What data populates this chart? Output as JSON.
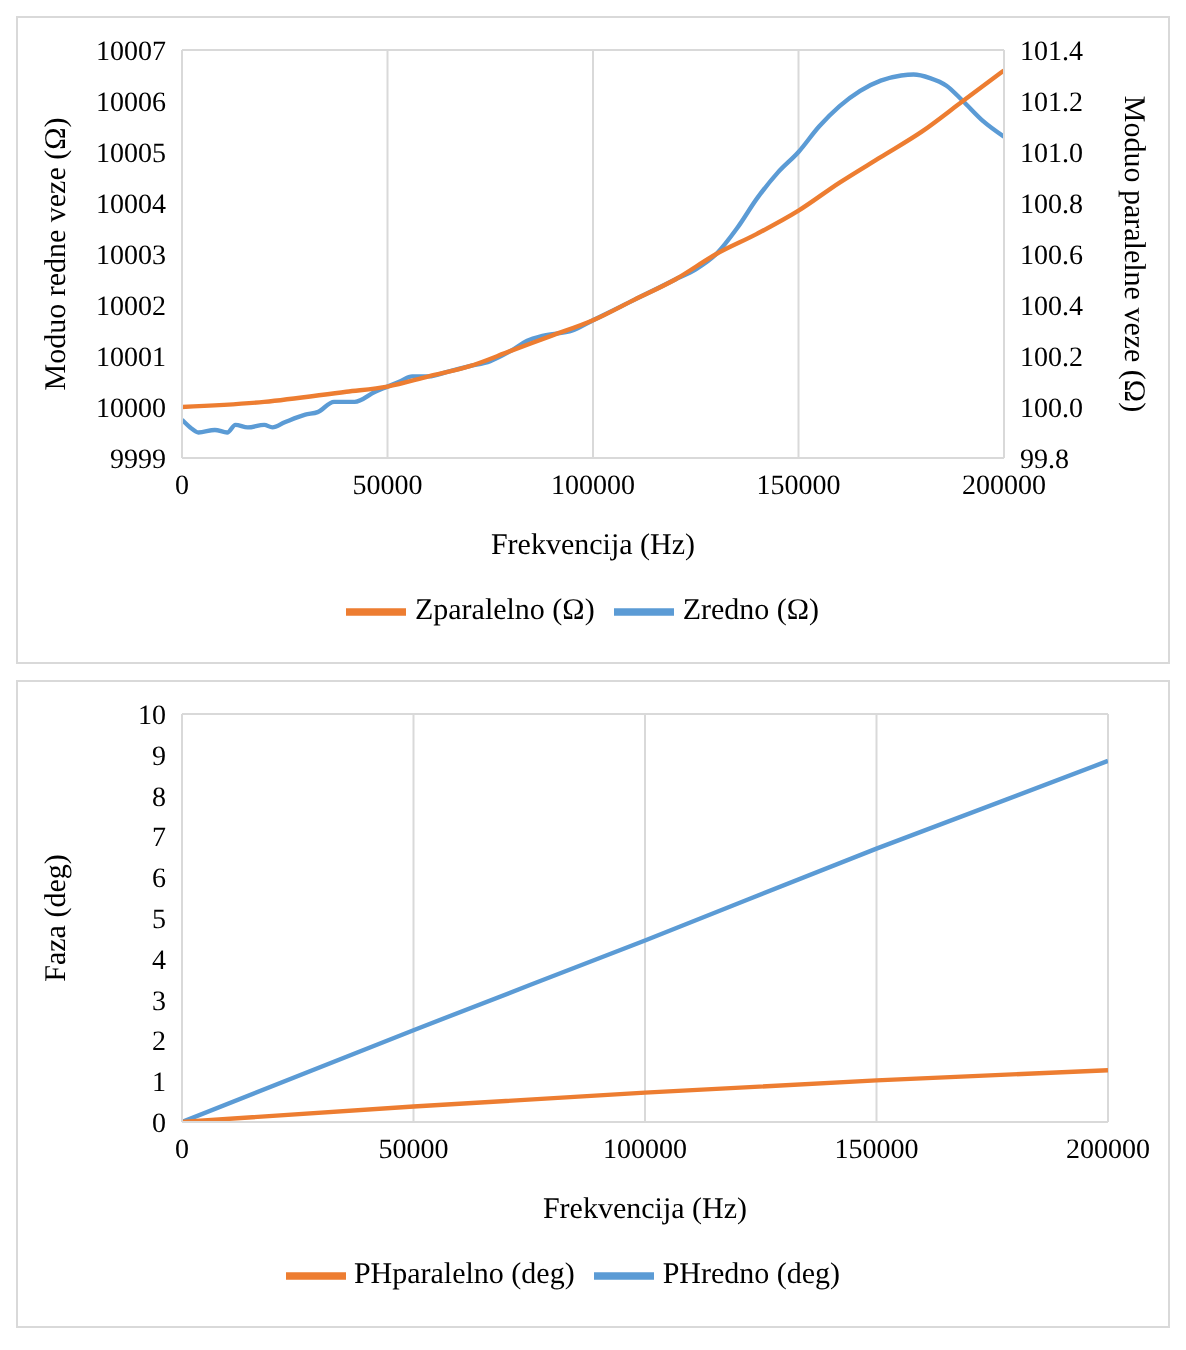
{
  "chart_data": [
    {
      "type": "line",
      "xlabel": "Frekvencija  (Hz)",
      "ylabel": "Moduo redne veze (Ω)",
      "y2label": "Moduo paralelne veze (Ω)",
      "xlim": [
        0,
        200000
      ],
      "xticks": [
        0,
        50000,
        100000,
        150000,
        200000
      ],
      "ylim": [
        9999,
        10007
      ],
      "yticks": [
        9999,
        10000,
        10001,
        10002,
        10003,
        10004,
        10005,
        10006,
        10007
      ],
      "y2lim": [
        99.8,
        101.4
      ],
      "y2ticks": [
        {
          "value": 99.8,
          "label": "99.8"
        },
        {
          "value": 100,
          "label": "100.0"
        },
        {
          "value": 100.2,
          "label": "100.2"
        },
        {
          "value": 100.4,
          "label": "100.4"
        },
        {
          "value": 100.6,
          "label": "100.6"
        },
        {
          "value": 100.8,
          "label": "100.8"
        },
        {
          "value": 101,
          "label": "101.0"
        },
        {
          "value": 101.2,
          "label": "101.2"
        },
        {
          "value": 101.4,
          "label": "101.4"
        }
      ],
      "grid": true,
      "legend": "bottom",
      "marker": "none",
      "line_style": "solid",
      "series": [
        {
          "name": "Zredno (Ω)",
          "color": "#5b9bd5",
          "x": [
            0,
            2000,
            4000,
            8000,
            11000,
            13000,
            16000,
            20000,
            22000,
            25000,
            30000,
            33000,
            37000,
            42000,
            47000,
            50000,
            53000,
            56000,
            60000,
            65000,
            70000,
            75000,
            80000,
            84000,
            88000,
            95000,
            100000,
            105000,
            110000,
            115000,
            120000,
            125000,
            130000,
            135000,
            140000,
            145000,
            150000,
            155000,
            160000,
            165000,
            170000,
            175000,
            178000,
            182000,
            186000,
            190000,
            195000,
            200000
          ],
          "values": [
            9999.75,
            9999.6,
            9999.5,
            9999.55,
            9999.5,
            9999.65,
            9999.6,
            9999.65,
            9999.6,
            9999.7,
            9999.85,
            9999.9,
            10000.1,
            10000.1,
            10000.3,
            10000.4,
            10000.5,
            10000.6,
            10000.6,
            10000.7,
            10000.8,
            10000.9,
            10001.1,
            10001.3,
            10001.4,
            10001.5,
            10001.7,
            10001.9,
            10002.1,
            10002.3,
            10002.5,
            10002.7,
            10003,
            10003.5,
            10004.1,
            10004.6,
            10005,
            10005.5,
            10005.9,
            10006.2,
            10006.4,
            10006.5,
            10006.52,
            10006.45,
            10006.3,
            10006,
            10005.6,
            10005.3
          ]
        },
        {
          "name": "Zparalelno (Ω)",
          "color": "#ed7d31",
          "axis": "y2",
          "x": [
            0,
            20000,
            40000,
            50000,
            60000,
            70000,
            80000,
            90000,
            100000,
            110000,
            120000,
            130000,
            140000,
            150000,
            160000,
            170000,
            180000,
            190000,
            200000
          ],
          "values": [
            100,
            100.02,
            100.06,
            100.08,
            100.12,
            100.16,
            100.22,
            100.28,
            100.34,
            100.42,
            100.5,
            100.6,
            100.68,
            100.77,
            100.88,
            100.98,
            101.08,
            101.2,
            101.32
          ]
        }
      ]
    },
    {
      "type": "line",
      "xlabel": "Frekvencija  (Hz)",
      "ylabel": "Faza (deg)",
      "xlim": [
        0,
        200000
      ],
      "xticks": [
        0,
        50000,
        100000,
        150000,
        200000
      ],
      "ylim": [
        0,
        10
      ],
      "yticks": [
        0,
        1,
        2,
        3,
        4,
        5,
        6,
        7,
        8,
        9,
        10
      ],
      "grid": true,
      "legend": "bottom",
      "marker": "none",
      "line_style": "solid",
      "series": [
        {
          "name": "PHredno (deg)",
          "color": "#5b9bd5",
          "x": [
            0,
            50000,
            100000,
            150000,
            200000
          ],
          "values": [
            0,
            2.25,
            4.45,
            6.7,
            8.85
          ]
        },
        {
          "name": "PHparalelno (deg)",
          "color": "#ed7d31",
          "x": [
            0,
            50000,
            100000,
            150000,
            200000
          ],
          "values": [
            0,
            0.38,
            0.72,
            1.02,
            1.27
          ]
        }
      ]
    }
  ]
}
